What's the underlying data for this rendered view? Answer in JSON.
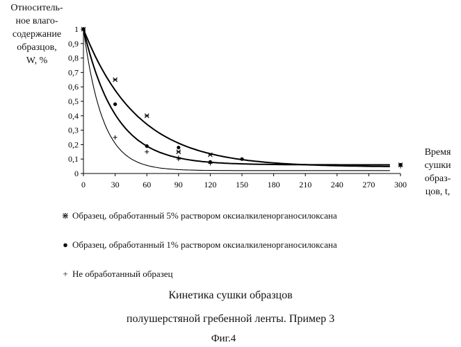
{
  "chart_data": {
    "type": "scatter",
    "ylabel_lines": [
      "Относитель-",
      "ное влаго-",
      "содержание",
      "образцов,",
      "W, %"
    ],
    "xlabel_lines": [
      "Время",
      "сушки",
      "образ-",
      "цов, t,"
    ],
    "x_ticks": [
      "0",
      "30",
      "60",
      "90",
      "120",
      "150",
      "180",
      "210",
      "240",
      "270",
      "300"
    ],
    "y_ticks": [
      "0",
      "0,1",
      "0,2",
      "0,3",
      "0,4",
      "0,5",
      "0,6",
      "0,7",
      "0,8",
      "0,9",
      "1"
    ],
    "xlim": [
      0,
      300
    ],
    "ylim": [
      0,
      1
    ],
    "series": [
      {
        "name": "Образец, обработанный 5% раствором оксиалкиленорганосилоксана",
        "marker": "star",
        "points": [
          [
            0,
            1.0
          ],
          [
            30,
            0.65
          ],
          [
            60,
            0.4
          ],
          [
            90,
            0.15
          ],
          [
            120,
            0.13
          ],
          [
            300,
            0.06
          ]
        ],
        "curve_k": 0.0195,
        "curve_c": 0.045
      },
      {
        "name": "Образец, обработанный 1% раствором оксиалкиленорганосилоксана",
        "marker": "dot",
        "points": [
          [
            0,
            1.0
          ],
          [
            30,
            0.48
          ],
          [
            60,
            0.19
          ],
          [
            90,
            0.18
          ],
          [
            120,
            0.08
          ],
          [
            150,
            0.1
          ],
          [
            300,
            0.06
          ]
        ],
        "curve_k": 0.033,
        "curve_c": 0.06
      },
      {
        "name": "Не обработанный образец",
        "marker": "plus",
        "points": [
          [
            0,
            1.0
          ],
          [
            30,
            0.25
          ],
          [
            60,
            0.15
          ],
          [
            90,
            0.11
          ],
          [
            90,
            0.1
          ],
          [
            120,
            0.07
          ],
          [
            300,
            0.05
          ]
        ],
        "curve_k": 0.055,
        "curve_c": 0.02
      }
    ]
  },
  "legend": [
    {
      "marker": "⋇",
      "label": "Образец, обработанный 5% раствором оксиалкиленорганосилоксана"
    },
    {
      "marker": "●",
      "label": "Образец, обработанный 1% раствором оксиалкиленорганосилоксана"
    },
    {
      "marker": "+",
      "label": "Не обработанный образец"
    }
  ],
  "caption": {
    "line1": "Кинетика сушки образцов",
    "line2": "полушерстяной гребенной ленты. Пример 3",
    "fig": "Фиг.4"
  }
}
